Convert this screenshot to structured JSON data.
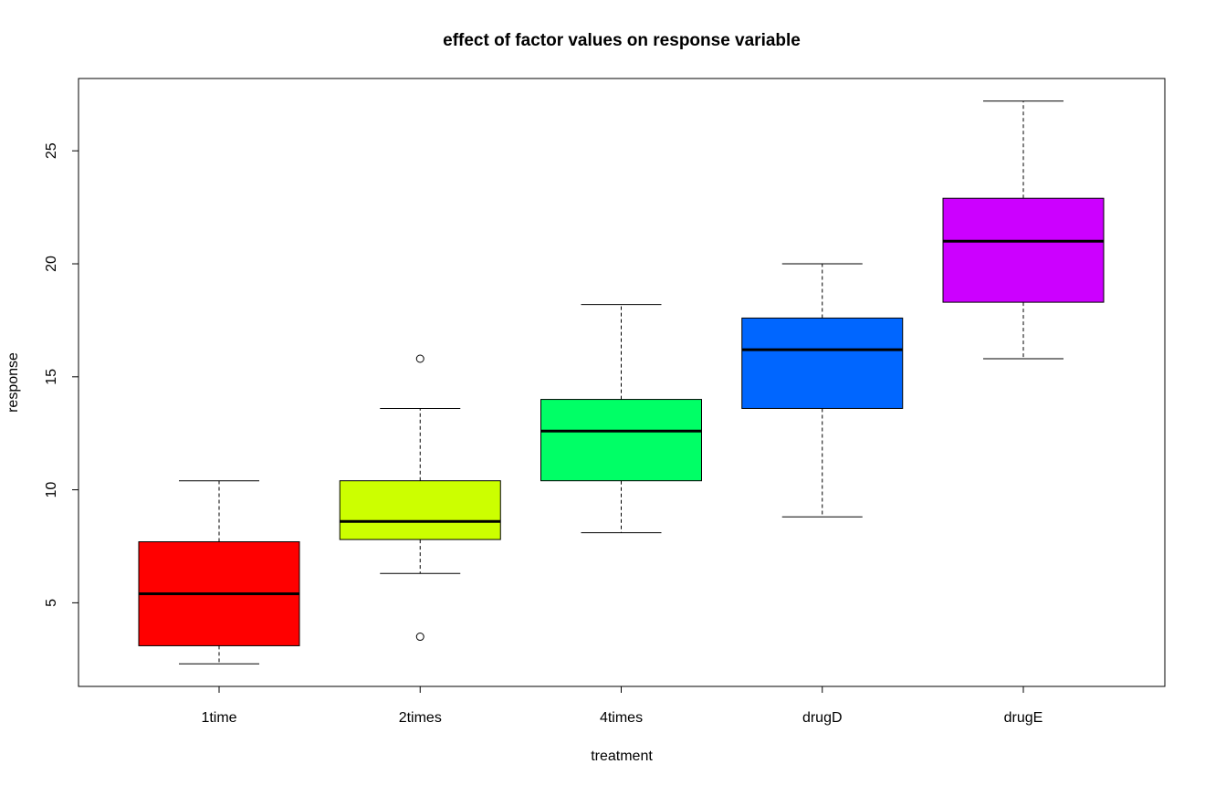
{
  "chart_data": {
    "type": "boxplot",
    "title": "effect of factor values on response variable",
    "xlabel": "treatment",
    "ylabel": "response",
    "ylim": [
      1.3,
      28.2
    ],
    "yticks": [
      5,
      10,
      15,
      20,
      25
    ],
    "ytick_labels": [
      "5",
      "10",
      "15",
      "20",
      "25"
    ],
    "grid": false,
    "legend": "none",
    "categories": [
      "1time",
      "2times",
      "4times",
      "drugD",
      "drugE"
    ],
    "boxes": [
      {
        "category": "1time",
        "whisker_low": 2.3,
        "q1": 3.1,
        "median": 5.4,
        "q3": 7.7,
        "whisker_high": 10.4,
        "outliers": [],
        "color": "#FF0000"
      },
      {
        "category": "2times",
        "whisker_low": 6.3,
        "q1": 7.8,
        "median": 8.6,
        "q3": 10.4,
        "whisker_high": 13.6,
        "outliers": [
          3.5,
          15.8
        ],
        "color": "#CCFF00"
      },
      {
        "category": "4times",
        "whisker_low": 8.1,
        "q1": 10.4,
        "median": 12.6,
        "q3": 14.0,
        "whisker_high": 18.2,
        "outliers": [],
        "color": "#00FF66"
      },
      {
        "category": "drugD",
        "whisker_low": 8.8,
        "q1": 13.6,
        "median": 16.2,
        "q3": 17.6,
        "whisker_high": 20.0,
        "outliers": [],
        "color": "#0066FF"
      },
      {
        "category": "drugE",
        "whisker_low": 15.8,
        "q1": 18.3,
        "median": 21.0,
        "q3": 22.9,
        "whisker_high": 27.2,
        "outliers": [],
        "color": "#CC00FF"
      }
    ]
  }
}
